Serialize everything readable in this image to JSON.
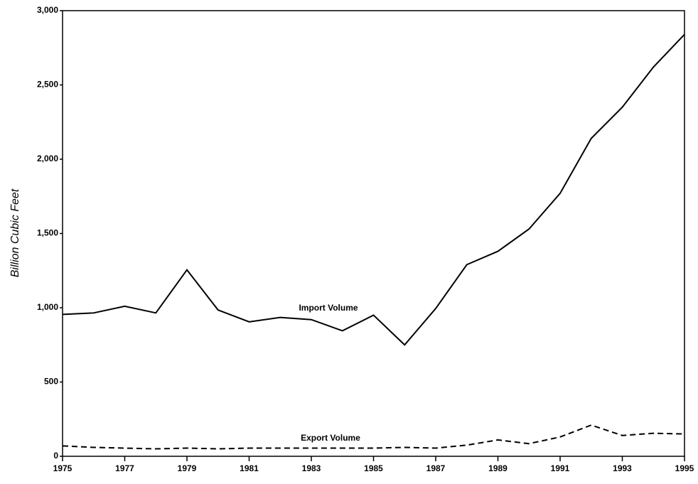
{
  "chart_data": {
    "type": "line",
    "y_label": "Billion Cubic Feet",
    "x": [
      1975,
      1976,
      1977,
      1978,
      1979,
      1980,
      1981,
      1982,
      1983,
      1984,
      1985,
      1986,
      1987,
      1988,
      1989,
      1990,
      1991,
      1992,
      1993,
      1994,
      1995
    ],
    "series": [
      {
        "name": "Import Volume",
        "color": "#000000",
        "dashed": false,
        "values": [
          955,
          965,
          1010,
          965,
          1255,
          985,
          905,
          935,
          920,
          845,
          950,
          750,
          995,
          1290,
          1380,
          1530,
          1770,
          2140,
          2350,
          2620,
          2840
        ]
      },
      {
        "name": "Export Volume",
        "color": "#000000",
        "dashed": true,
        "values": [
          70,
          60,
          55,
          50,
          55,
          50,
          55,
          55,
          55,
          55,
          55,
          60,
          55,
          75,
          110,
          85,
          130,
          210,
          140,
          155,
          150
        ]
      }
    ],
    "xlim": [
      1975,
      1995
    ],
    "xticks": [
      1975,
      1977,
      1979,
      1981,
      1983,
      1985,
      1987,
      1989,
      1991,
      1993,
      1995
    ],
    "ylim": [
      0,
      3000
    ],
    "yticks": [
      0,
      500,
      {
        "value": 1000,
        "label": "1,000"
      },
      {
        "value": 1500,
        "label": "1,500"
      },
      {
        "value": 2000,
        "label": "2,000"
      },
      {
        "value": 2500,
        "label": "2,500"
      },
      {
        "value": 3000,
        "label": "3,000"
      }
    ],
    "grid": false
  }
}
